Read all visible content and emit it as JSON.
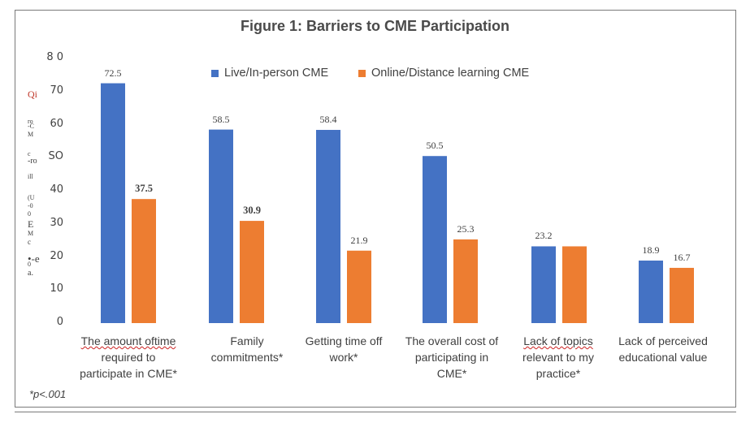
{
  "chart_data": {
    "type": "bar",
    "title": "Figure 1: Barriers to CME Participation",
    "categories": [
      "The amount oftime required to participate in CME*",
      "Family commitments*",
      "Getting time off work*",
      "The overall cost of participating in CME*",
      "Lack of topics relevant to my practice*",
      "Lack of perceived educational value"
    ],
    "category_lines": [
      [
        "The amount  oftime",
        "required to",
        "participate in CME*"
      ],
      [
        "Family",
        "commitments*"
      ],
      [
        "Getting time off",
        "work*"
      ],
      [
        "The overall cost of",
        "participating in",
        "CME*"
      ],
      [
        "Lack of topics",
        "relevant to my",
        "practice*"
      ],
      [
        "Lack of  perceived",
        "educational value"
      ]
    ],
    "series": [
      {
        "name": "Live/In-person CME",
        "color": "#4472C4",
        "values": [
          72.5,
          58.5,
          58.4,
          50.5,
          23.2,
          18.9
        ],
        "labels": [
          "72.5",
          "58.5",
          "58.4",
          "50.5",
          "23.2",
          "18.9"
        ]
      },
      {
        "name": "Online/Distance learning CME",
        "color": "#ED7D31",
        "values": [
          37.5,
          30.9,
          21.9,
          25.3,
          23.2,
          16.7
        ],
        "labels": [
          "37.5",
          "30.9",
          "21.9",
          "25.3",
          "",
          "16.7"
        ]
      }
    ],
    "ylim": [
      0,
      80
    ],
    "yticks": [
      "0",
      "10",
      "20",
      "30",
      "40",
      "SO",
      "60",
      "70",
      "8 0"
    ],
    "ylabel_fragments": [
      "Qi",
      "ro",
      "-C",
      "M",
      "c",
      "-ro",
      "ill",
      "(U",
      "-0",
      "0",
      "E",
      "M",
      "c",
      "•-e",
      "0",
      "a."
    ],
    "xlabel": "",
    "legend_position": "top",
    "grid": false
  },
  "footnote": "*p<.001"
}
